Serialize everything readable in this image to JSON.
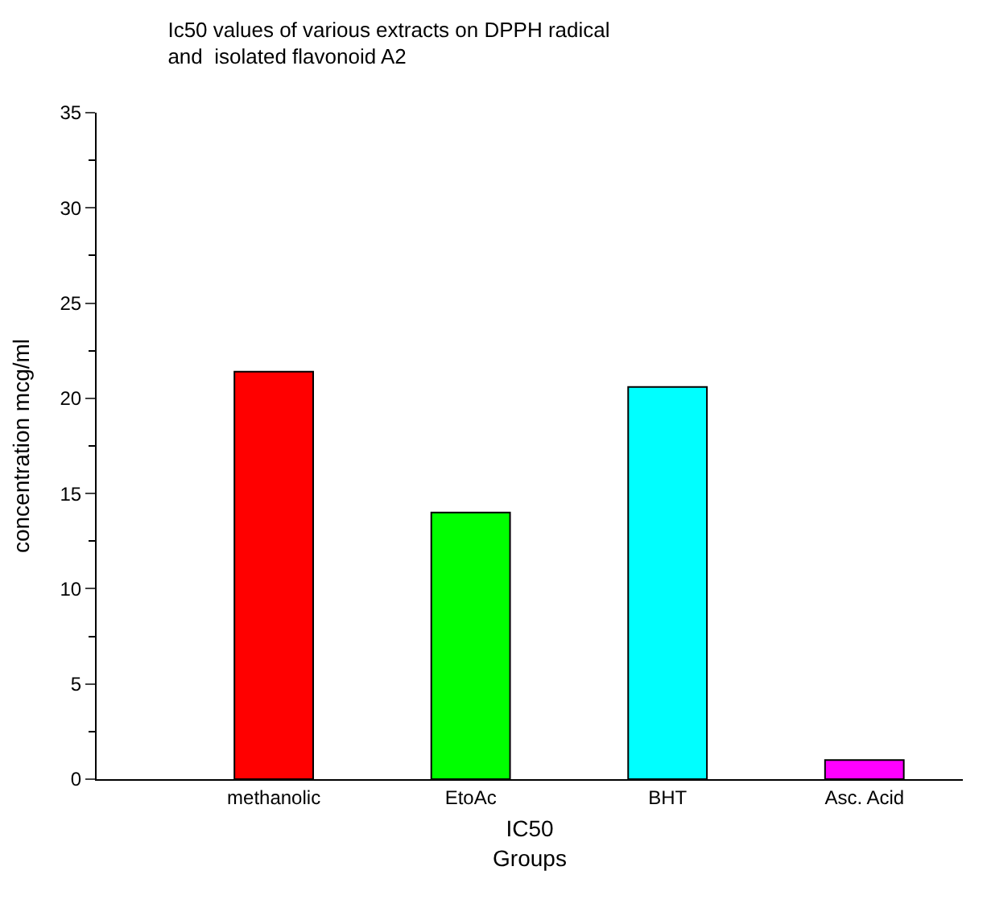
{
  "chart_data": {
    "type": "bar",
    "title": "Ic50 values of various extracts on DPPH radical\nand  isolated flavonoid A2",
    "xlabel": "IC50\nGroups",
    "ylabel": "concentration mcg/ml",
    "categories": [
      "methanolic",
      "EtoAc",
      "BHT",
      "Asc. Acid"
    ],
    "values": [
      21.4,
      14.0,
      20.6,
      1.0
    ],
    "colors": [
      "#ff0000",
      "#00ff00",
      "#00ffff",
      "#ff00ff"
    ],
    "ylim": [
      0,
      35
    ],
    "yticks": [
      0,
      5,
      10,
      15,
      20,
      25,
      30,
      35
    ]
  }
}
